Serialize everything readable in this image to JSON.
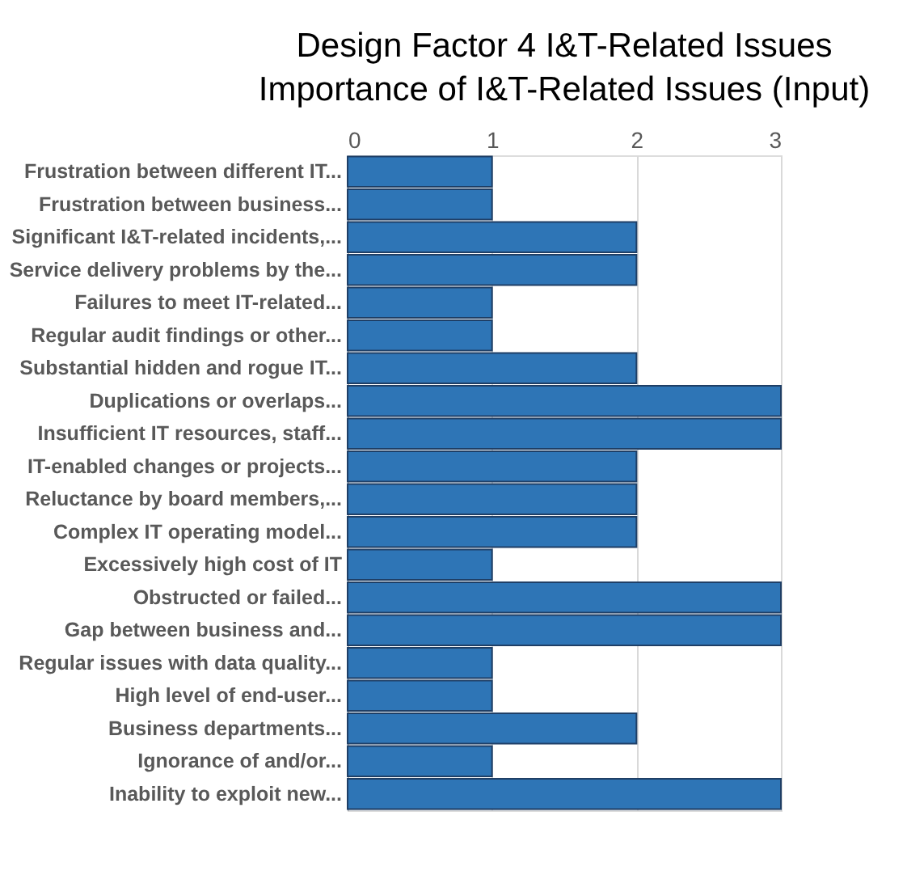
{
  "chart_data": {
    "type": "bar",
    "orientation": "horizontal",
    "title": "Design Factor 4 I&T-Related Issues",
    "subtitle": "Importance of I&T-Related Issues (Input)",
    "categories": [
      "Frustration between different IT...",
      "Frustration between business...",
      "Significant I&T-related incidents,...",
      "Service delivery problems by the...",
      "Failures to meet IT-related...",
      "Regular audit findings or other...",
      "Substantial hidden and rogue IT...",
      "Duplications or overlaps...",
      "Insufficient IT resources, staff...",
      "IT-enabled changes or projects...",
      "Reluctance by board members,...",
      "Complex IT operating model...",
      "Excessively high cost of IT",
      "Obstructed or failed...",
      "Gap between business and...",
      "Regular issues with data quality...",
      "High level of end-user...",
      "Business departments...",
      "Ignorance of and/or...",
      "Inability to exploit new..."
    ],
    "values": [
      1,
      1,
      2,
      2,
      1,
      1,
      2,
      3,
      3,
      2,
      2,
      2,
      1,
      3,
      3,
      1,
      1,
      2,
      1,
      3
    ],
    "color": "#2e75b6",
    "xlim": [
      0,
      3
    ],
    "xticks": [
      0,
      1,
      2,
      3
    ],
    "grid": "x"
  }
}
